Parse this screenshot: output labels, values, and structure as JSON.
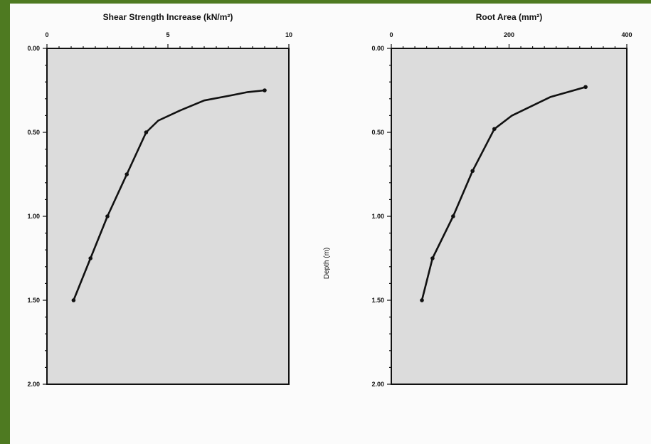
{
  "colors": {
    "border": "#4e7a21",
    "plot_background": "#dcdcdc",
    "ink": "#111111"
  },
  "shared_y_label": "Depth (m)",
  "chart_data": [
    {
      "type": "line",
      "title": "Shear Strength Increase (kN/m²)",
      "xlabel": "",
      "ylabel": "",
      "xlim": [
        0,
        10
      ],
      "ylim": [
        0,
        2
      ],
      "y_inverted": true,
      "x_axis_position": "top",
      "x_ticks": [
        0,
        5,
        10
      ],
      "x_tick_labels": [
        "0",
        "5",
        "10"
      ],
      "y_ticks": [
        0,
        0.5,
        1,
        1.5,
        2
      ],
      "y_tick_labels": [
        "0.00",
        "0.50",
        "1.00",
        "1.50",
        "2.00"
      ],
      "grid": false,
      "series": [
        {
          "x": [
            1.1,
            1.8,
            2.5,
            3.3,
            4.1,
            4.6,
            5.5,
            6.5,
            7.6,
            8.3,
            9.0
          ],
          "y": [
            1.5,
            1.25,
            1.0,
            0.75,
            0.5,
            0.43,
            0.37,
            0.31,
            0.28,
            0.26,
            0.25
          ],
          "markers": [
            true,
            true,
            true,
            true,
            true,
            false,
            false,
            false,
            false,
            false,
            true
          ]
        }
      ]
    },
    {
      "type": "line",
      "title": "Root Area (mm²)",
      "xlabel": "",
      "ylabel": "Depth (m)",
      "xlim": [
        0,
        400
      ],
      "ylim": [
        0,
        2
      ],
      "y_inverted": true,
      "x_axis_position": "top",
      "x_ticks": [
        0,
        200,
        400
      ],
      "x_tick_labels": [
        "0",
        "200",
        "400"
      ],
      "y_ticks": [
        0,
        0.5,
        1,
        1.5,
        2
      ],
      "y_tick_labels": [
        "0.00",
        "0.50",
        "1.00",
        "1.50",
        "2.00"
      ],
      "grid": false,
      "series": [
        {
          "x": [
            52,
            70,
            105,
            138,
            175,
            205,
            270,
            330
          ],
          "y": [
            1.5,
            1.25,
            1.0,
            0.73,
            0.48,
            0.4,
            0.29,
            0.23
          ],
          "markers": [
            true,
            true,
            true,
            true,
            true,
            false,
            false,
            true
          ]
        }
      ]
    }
  ]
}
